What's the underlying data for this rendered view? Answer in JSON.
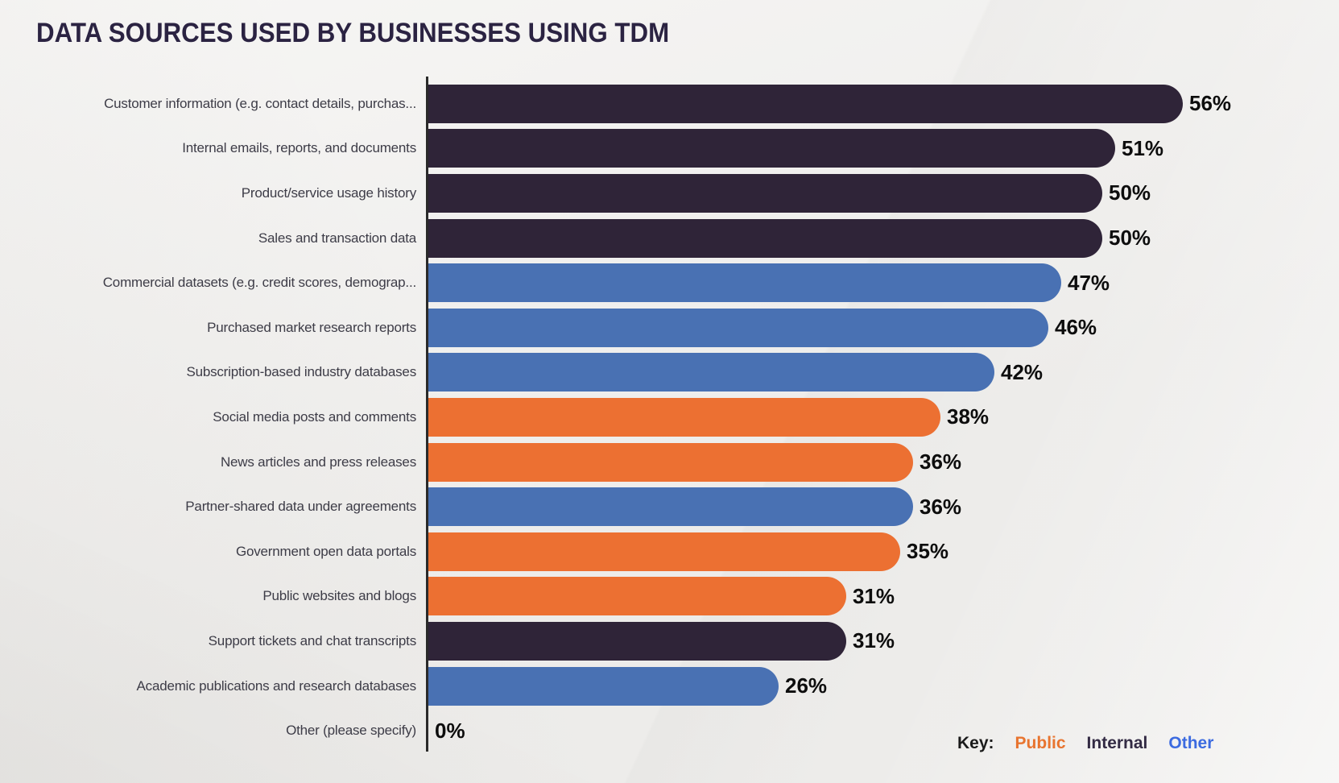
{
  "title": "DATA SOURCES USED BY BUSINESSES USING TDM",
  "chart_data": {
    "type": "bar",
    "orientation": "horizontal",
    "unit": "%",
    "xlim": [
      0,
      60
    ],
    "grid": false,
    "categories": [
      "Customer information (e.g. contact details, purchas...",
      "Internal emails, reports, and documents",
      "Product/service usage history",
      "Sales and transaction data",
      "Commercial datasets (e.g. credit scores, demograp...",
      "Purchased market research reports",
      "Subscription-based industry databases",
      "Social media posts and comments",
      "News articles and press releases",
      "Partner-shared data under agreements",
      "Government open data portals",
      "Public websites and blogs",
      "Support tickets and chat transcripts",
      "Academic publications and research databases",
      "Other (please specify)"
    ],
    "values": [
      56,
      51,
      50,
      50,
      47,
      46,
      42,
      38,
      36,
      36,
      35,
      31,
      31,
      26,
      0
    ],
    "value_labels": [
      "56%",
      "51%",
      "50%",
      "50%",
      "47%",
      "46%",
      "42%",
      "38%",
      "36%",
      "36%",
      "35%",
      "31%",
      "31%",
      "26%",
      "0%"
    ],
    "bar_groups": [
      "internal",
      "internal",
      "internal",
      "internal",
      "other",
      "other",
      "other",
      "public",
      "public",
      "other",
      "public",
      "public",
      "internal",
      "other",
      "none"
    ],
    "legend": {
      "position": "bottom-right",
      "prefix": "Key:",
      "entries": [
        {
          "label": "Public",
          "color": "#e8742f"
        },
        {
          "label": "Internal",
          "color": "#332b44"
        },
        {
          "label": "Other",
          "color": "#3c6be0"
        }
      ]
    }
  },
  "colors": {
    "internal": "#2f2438",
    "public": "#ec7032",
    "other": "#4971b3",
    "none": "transparent",
    "background": "#f2f1ef",
    "axis": "#2a2a2a",
    "title_text": "#2b2342",
    "category_text": "#3d3c47",
    "value_text": "#0d0d0d",
    "key_text": "#1a1a1a"
  }
}
